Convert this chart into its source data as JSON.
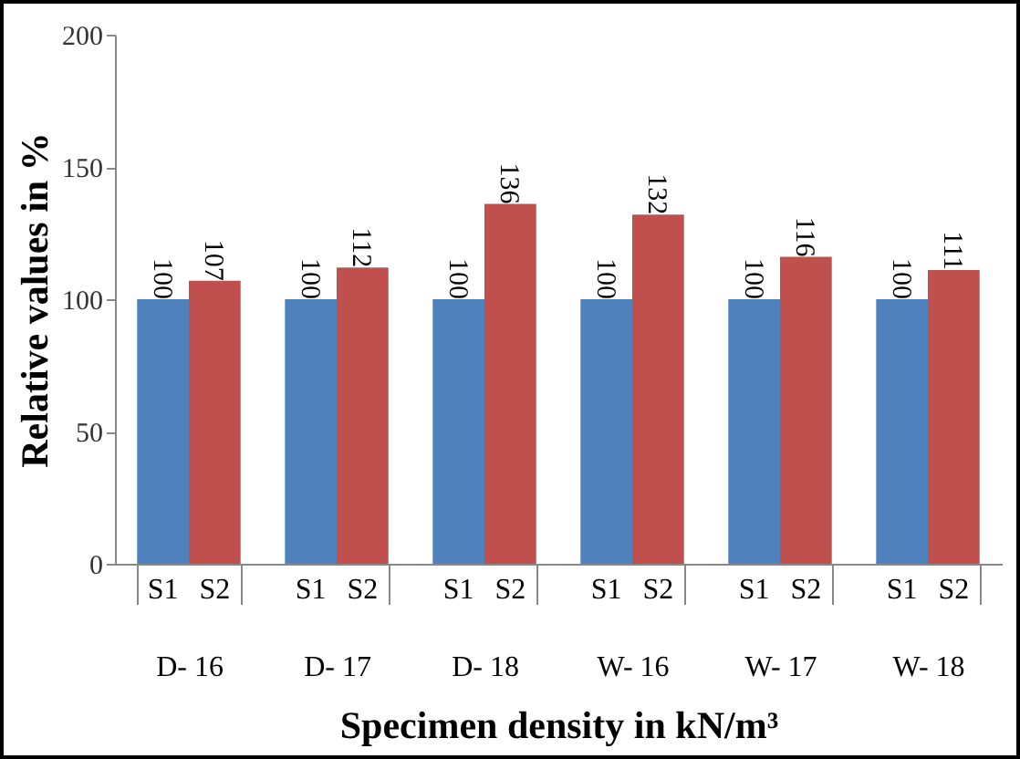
{
  "chart_data": {
    "type": "bar",
    "xlabel": "Specimen density in kN/m³",
    "ylabel": "Relative values in %",
    "categories": [
      "D- 16",
      "D- 17",
      "D- 18",
      "W- 16",
      "W- 17",
      "W- 18"
    ],
    "series": [
      {
        "name": "S1",
        "color": "#4f81bd",
        "values": [
          100,
          100,
          100,
          100,
          100,
          100
        ]
      },
      {
        "name": "S2",
        "color": "#c0504d",
        "values": [
          107,
          112,
          136,
          132,
          116,
          111
        ]
      }
    ],
    "ylim": [
      0,
      200
    ],
    "yticks": [
      0,
      50,
      100,
      150,
      200
    ],
    "data_labels": true,
    "grid": false,
    "legend": false
  }
}
